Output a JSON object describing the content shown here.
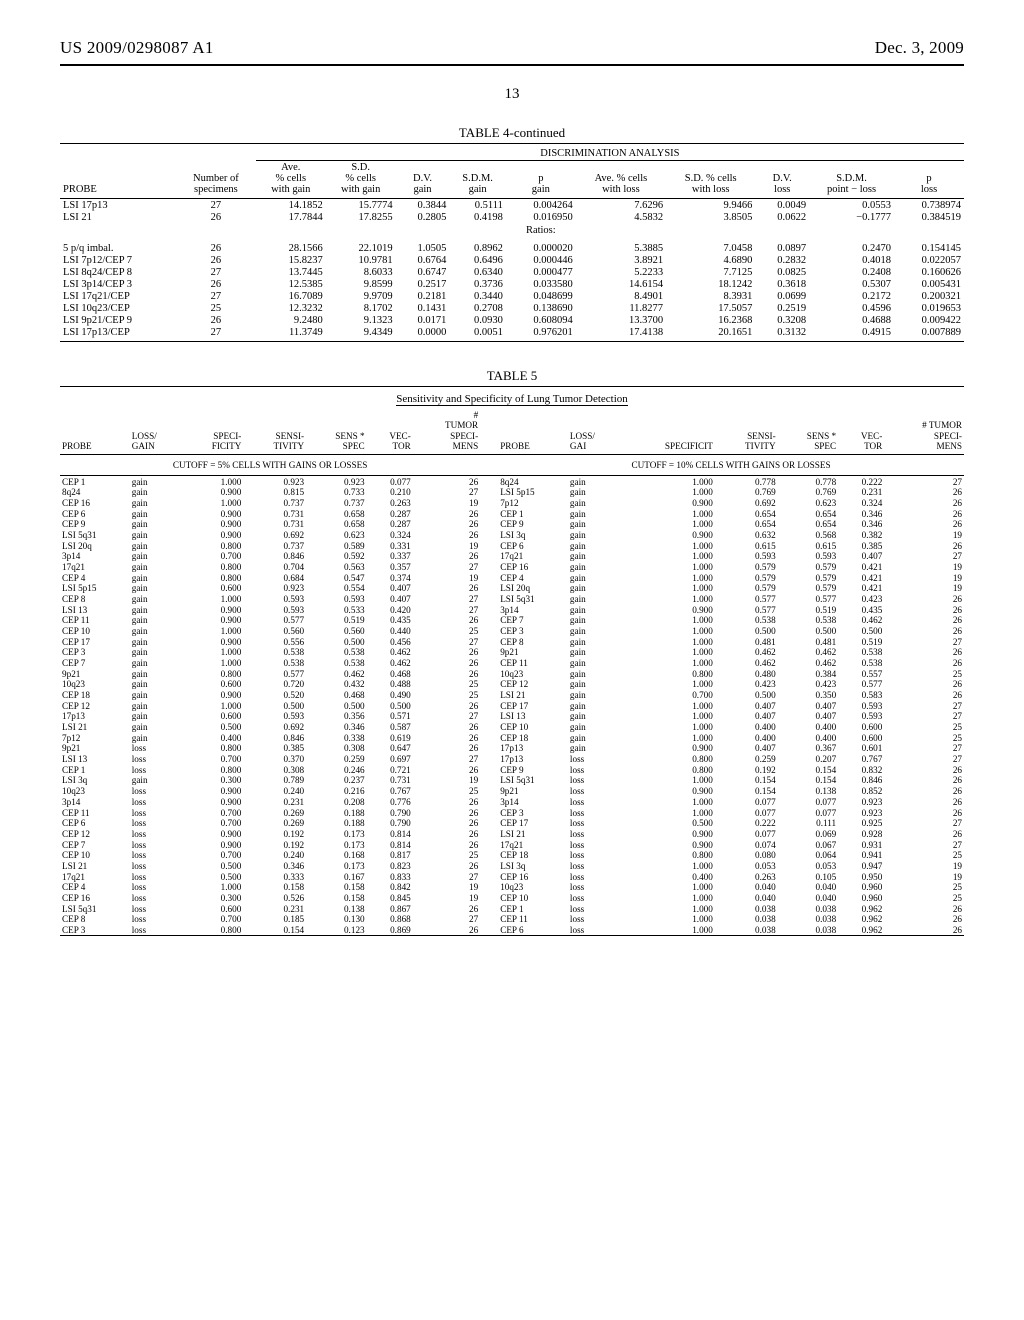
{
  "header": {
    "docket": "US 2009/0298087 A1",
    "date": "Dec. 3, 2009",
    "page_number": "13"
  },
  "table4": {
    "caption": "TABLE 4-continued",
    "section_title": "DISCRIMINATION ANALYSIS",
    "ratios_label": "Ratios:",
    "columns": {
      "probe": "PROBE",
      "n": "Number of\nspecimens",
      "ave_gain": "Ave.\n% cells\nwith gain",
      "sd_gain": "S.D.\n% cells\nwith gain",
      "dv_gain": "D.V.\ngain",
      "sdm_gain": "S.D.M.\ngain",
      "p_gain": "p\ngain",
      "ave_loss": "Ave. % cells\nwith loss",
      "sd_loss": "S.D. % cells\nwith loss",
      "dv_loss": "D.V.\nloss",
      "sdm_loss": "S.D.M.\npoint − loss",
      "p_loss": "p\nloss"
    },
    "top_rows": [
      [
        "LSI 17p13",
        "27",
        "14.1852",
        "15.7774",
        "0.3844",
        "0.5111",
        "0.004264",
        "7.6296",
        "9.9466",
        "0.0049",
        "0.0553",
        "0.738974"
      ],
      [
        "LSI 21",
        "26",
        "17.7844",
        "17.8255",
        "0.2805",
        "0.4198",
        "0.016950",
        "4.5832",
        "3.8505",
        "0.0622",
        "−0.1777",
        "0.384519"
      ]
    ],
    "ratio_rows": [
      [
        "5 p/q imbal.",
        "26",
        "28.1566",
        "22.1019",
        "1.0505",
        "0.8962",
        "0.000020",
        "5.3885",
        "7.0458",
        "0.0897",
        "0.2470",
        "0.154145"
      ],
      [
        "LSI 7p12/CEP 7",
        "26",
        "15.8237",
        "10.9781",
        "0.6764",
        "0.6496",
        "0.000446",
        "3.8921",
        "4.6890",
        "0.2832",
        "0.4018",
        "0.022057"
      ],
      [
        "LSI 8q24/CEP 8",
        "27",
        "13.7445",
        "8.6033",
        "0.6747",
        "0.6340",
        "0.000477",
        "5.2233",
        "7.7125",
        "0.0825",
        "0.2408",
        "0.160626"
      ],
      [
        "LSI 3p14/CEP 3",
        "26",
        "12.5385",
        "9.8599",
        "0.2517",
        "0.3736",
        "0.033580",
        "14.6154",
        "18.1242",
        "0.3618",
        "0.5307",
        "0.005431"
      ],
      [
        "LSI 17q21/CEP",
        "27",
        "16.7089",
        "9.9709",
        "0.2181",
        "0.3440",
        "0.048699",
        "8.4901",
        "8.3931",
        "0.0699",
        "0.2172",
        "0.200321"
      ],
      [
        "LSI 10q23/CEP",
        "25",
        "12.3232",
        "8.1702",
        "0.1431",
        "0.2708",
        "0.138690",
        "11.8277",
        "17.5057",
        "0.2519",
        "0.4596",
        "0.019653"
      ],
      [
        "LSI 9p21/CEP 9",
        "26",
        "9.2480",
        "9.1323",
        "0.0171",
        "0.0930",
        "0.608094",
        "13.3700",
        "16.2368",
        "0.3208",
        "0.4688",
        "0.009422"
      ],
      [
        "LSI 17p13/CEP",
        "27",
        "11.3749",
        "9.4349",
        "0.0000",
        "0.0051",
        "0.976201",
        "17.4138",
        "20.1651",
        "0.3132",
        "0.4915",
        "0.007889"
      ]
    ]
  },
  "table5": {
    "label": "TABLE 5",
    "title": "Sensitivity and Specificity of Lung Tumor Detection",
    "cutoff_left": "CUTOFF = 5% CELLS WITH GAINS OR LOSSES",
    "cutoff_right": "CUTOFF = 10% CELLS WITH GAINS OR LOSSES",
    "columns": {
      "probe": "PROBE",
      "loss_gain_l": "LOSS/\nGAIN",
      "loss_gain_r": "LOSS/\nGAI",
      "spec": "SPECI-\nFICITY",
      "spec_r": "SPECIFICIT",
      "sens": "SENSI-\nTIVITY",
      "sens_spec": "SENS *\nSPEC",
      "vector": "VEC-\nTOR",
      "tumor_spec": "#\nTUMOR\nSPECI-\nMENS",
      "tumor_spec_r": "# TUMOR\nSPECI-\nMENS"
    },
    "rows": [
      [
        "CEP 1",
        "gain",
        "1.000",
        "0.923",
        "0.923",
        "0.077",
        "26",
        "8q24",
        "gain",
        "1.000",
        "0.778",
        "0.778",
        "0.222",
        "27"
      ],
      [
        "8q24",
        "gain",
        "0.900",
        "0.815",
        "0.733",
        "0.210",
        "27",
        "LSI 5p15",
        "gain",
        "1.000",
        "0.769",
        "0.769",
        "0.231",
        "26"
      ],
      [
        "CEP 16",
        "gain",
        "1.000",
        "0.737",
        "0.737",
        "0.263",
        "19",
        "7p12",
        "gain",
        "0.900",
        "0.692",
        "0.623",
        "0.324",
        "26"
      ],
      [
        "CEP 6",
        "gain",
        "0.900",
        "0.731",
        "0.658",
        "0.287",
        "26",
        "CEP 1",
        "gain",
        "1.000",
        "0.654",
        "0.654",
        "0.346",
        "26"
      ],
      [
        "CEP 9",
        "gain",
        "0.900",
        "0.731",
        "0.658",
        "0.287",
        "26",
        "CEP 9",
        "gain",
        "1.000",
        "0.654",
        "0.654",
        "0.346",
        "26"
      ],
      [
        "LSI 5q31",
        "gain",
        "0.900",
        "0.692",
        "0.623",
        "0.324",
        "26",
        "LSI 3q",
        "gain",
        "0.900",
        "0.632",
        "0.568",
        "0.382",
        "19"
      ],
      [
        "LSI 20q",
        "gain",
        "0.800",
        "0.737",
        "0.589",
        "0.331",
        "19",
        "CEP 6",
        "gain",
        "1.000",
        "0.615",
        "0.615",
        "0.385",
        "26"
      ],
      [
        "3p14",
        "gain",
        "0.700",
        "0.846",
        "0.592",
        "0.337",
        "26",
        "17q21",
        "gain",
        "1.000",
        "0.593",
        "0.593",
        "0.407",
        "27"
      ],
      [
        "17q21",
        "gain",
        "0.800",
        "0.704",
        "0.563",
        "0.357",
        "27",
        "CEP 16",
        "gain",
        "1.000",
        "0.579",
        "0.579",
        "0.421",
        "19"
      ],
      [
        "CEP 4",
        "gain",
        "0.800",
        "0.684",
        "0.547",
        "0.374",
        "19",
        "CEP 4",
        "gain",
        "1.000",
        "0.579",
        "0.579",
        "0.421",
        "19"
      ],
      [
        "LSI 5p15",
        "gain",
        "0.600",
        "0.923",
        "0.554",
        "0.407",
        "26",
        "LSI 20q",
        "gain",
        "1.000",
        "0.579",
        "0.579",
        "0.421",
        "19"
      ],
      [
        "CEP 8",
        "gain",
        "1.000",
        "0.593",
        "0.593",
        "0.407",
        "27",
        "LSI 5q31",
        "gain",
        "1.000",
        "0.577",
        "0.577",
        "0.423",
        "26"
      ],
      [
        "LSI 13",
        "gain",
        "0.900",
        "0.593",
        "0.533",
        "0.420",
        "27",
        "3p14",
        "gain",
        "0.900",
        "0.577",
        "0.519",
        "0.435",
        "26"
      ],
      [
        "CEP 11",
        "gain",
        "0.900",
        "0.577",
        "0.519",
        "0.435",
        "26",
        "CEP 7",
        "gain",
        "1.000",
        "0.538",
        "0.538",
        "0.462",
        "26"
      ],
      [
        "CEP 10",
        "gain",
        "1.000",
        "0.560",
        "0.560",
        "0.440",
        "25",
        "CEP 3",
        "gain",
        "1.000",
        "0.500",
        "0.500",
        "0.500",
        "26"
      ],
      [
        "CEP 17",
        "gain",
        "0.900",
        "0.556",
        "0.500",
        "0.456",
        "27",
        "CEP 8",
        "gain",
        "1.000",
        "0.481",
        "0.481",
        "0.519",
        "27"
      ],
      [
        "CEP 3",
        "gain",
        "1.000",
        "0.538",
        "0.538",
        "0.462",
        "26",
        "9p21",
        "gain",
        "1.000",
        "0.462",
        "0.462",
        "0.538",
        "26"
      ],
      [
        "CEP 7",
        "gain",
        "1.000",
        "0.538",
        "0.538",
        "0.462",
        "26",
        "CEP 11",
        "gain",
        "1.000",
        "0.462",
        "0.462",
        "0.538",
        "26"
      ],
      [
        "9p21",
        "gain",
        "0.800",
        "0.577",
        "0.462",
        "0.468",
        "26",
        "10q23",
        "gain",
        "0.800",
        "0.480",
        "0.384",
        "0.557",
        "25"
      ],
      [
        "10q23",
        "gain",
        "0.600",
        "0.720",
        "0.432",
        "0.488",
        "25",
        "CEP 12",
        "gain",
        "1.000",
        "0.423",
        "0.423",
        "0.577",
        "26"
      ],
      [
        "CEP 18",
        "gain",
        "0.900",
        "0.520",
        "0.468",
        "0.490",
        "25",
        "LSI 21",
        "gain",
        "0.700",
        "0.500",
        "0.350",
        "0.583",
        "26"
      ],
      [
        "CEP 12",
        "gain",
        "1.000",
        "0.500",
        "0.500",
        "0.500",
        "26",
        "CEP 17",
        "gain",
        "1.000",
        "0.407",
        "0.407",
        "0.593",
        "27"
      ],
      [
        "17p13",
        "gain",
        "0.600",
        "0.593",
        "0.356",
        "0.571",
        "27",
        "LSI 13",
        "gain",
        "1.000",
        "0.407",
        "0.407",
        "0.593",
        "27"
      ],
      [
        "LSI 21",
        "gain",
        "0.500",
        "0.692",
        "0.346",
        "0.587",
        "26",
        "CEP 10",
        "gain",
        "1.000",
        "0.400",
        "0.400",
        "0.600",
        "25"
      ],
      [
        "7p12",
        "gain",
        "0.400",
        "0.846",
        "0.338",
        "0.619",
        "26",
        "CEP 18",
        "gain",
        "1.000",
        "0.400",
        "0.400",
        "0.600",
        "25"
      ],
      [
        "9p21",
        "loss",
        "0.800",
        "0.385",
        "0.308",
        "0.647",
        "26",
        "17p13",
        "gain",
        "0.900",
        "0.407",
        "0.367",
        "0.601",
        "27"
      ],
      [
        "LSI 13",
        "loss",
        "0.700",
        "0.370",
        "0.259",
        "0.697",
        "27",
        "17p13",
        "loss",
        "0.800",
        "0.259",
        "0.207",
        "0.767",
        "27"
      ],
      [
        "CEP 1",
        "loss",
        "0.800",
        "0.308",
        "0.246",
        "0.721",
        "26",
        "CEP 9",
        "loss",
        "0.800",
        "0.192",
        "0.154",
        "0.832",
        "26"
      ],
      [
        "LSI 3q",
        "gain",
        "0.300",
        "0.789",
        "0.237",
        "0.731",
        "19",
        "LSI 5q31",
        "loss",
        "1.000",
        "0.154",
        "0.154",
        "0.846",
        "26"
      ],
      [
        "10q23",
        "loss",
        "0.900",
        "0.240",
        "0.216",
        "0.767",
        "25",
        "9p21",
        "loss",
        "0.900",
        "0.154",
        "0.138",
        "0.852",
        "26"
      ],
      [
        "3p14",
        "loss",
        "0.900",
        "0.231",
        "0.208",
        "0.776",
        "26",
        "3p14",
        "loss",
        "1.000",
        "0.077",
        "0.077",
        "0.923",
        "26"
      ],
      [
        "CEP 11",
        "loss",
        "0.700",
        "0.269",
        "0.188",
        "0.790",
        "26",
        "CEP 3",
        "loss",
        "1.000",
        "0.077",
        "0.077",
        "0.923",
        "26"
      ],
      [
        "CEP 6",
        "loss",
        "0.700",
        "0.269",
        "0.188",
        "0.790",
        "26",
        "CEP 17",
        "loss",
        "0.500",
        "0.222",
        "0.111",
        "0.925",
        "27"
      ],
      [
        "CEP 12",
        "loss",
        "0.900",
        "0.192",
        "0.173",
        "0.814",
        "26",
        "LSI 21",
        "loss",
        "0.900",
        "0.077",
        "0.069",
        "0.928",
        "26"
      ],
      [
        "CEP 7",
        "loss",
        "0.900",
        "0.192",
        "0.173",
        "0.814",
        "26",
        "17q21",
        "loss",
        "0.900",
        "0.074",
        "0.067",
        "0.931",
        "27"
      ],
      [
        "CEP 10",
        "loss",
        "0.700",
        "0.240",
        "0.168",
        "0.817",
        "25",
        "CEP 18",
        "loss",
        "0.800",
        "0.080",
        "0.064",
        "0.941",
        "25"
      ],
      [
        "LSI 21",
        "loss",
        "0.500",
        "0.346",
        "0.173",
        "0.823",
        "26",
        "LSI 3q",
        "loss",
        "1.000",
        "0.053",
        "0.053",
        "0.947",
        "19"
      ],
      [
        "17q21",
        "loss",
        "0.500",
        "0.333",
        "0.167",
        "0.833",
        "27",
        "CEP 16",
        "loss",
        "0.400",
        "0.263",
        "0.105",
        "0.950",
        "19"
      ],
      [
        "CEP 4",
        "loss",
        "1.000",
        "0.158",
        "0.158",
        "0.842",
        "19",
        "10q23",
        "loss",
        "1.000",
        "0.040",
        "0.040",
        "0.960",
        "25"
      ],
      [
        "CEP 16",
        "loss",
        "0.300",
        "0.526",
        "0.158",
        "0.845",
        "19",
        "CEP 10",
        "loss",
        "1.000",
        "0.040",
        "0.040",
        "0.960",
        "25"
      ],
      [
        "LSI 5q31",
        "loss",
        "0.600",
        "0.231",
        "0.138",
        "0.867",
        "26",
        "CEP 1",
        "loss",
        "1.000",
        "0.038",
        "0.038",
        "0.962",
        "26"
      ],
      [
        "CEP 8",
        "loss",
        "0.700",
        "0.185",
        "0.130",
        "0.868",
        "27",
        "CEP 11",
        "loss",
        "1.000",
        "0.038",
        "0.038",
        "0.962",
        "26"
      ],
      [
        "CEP 3",
        "loss",
        "0.800",
        "0.154",
        "0.123",
        "0.869",
        "26",
        "CEP 6",
        "loss",
        "1.000",
        "0.038",
        "0.038",
        "0.962",
        "26"
      ]
    ]
  }
}
